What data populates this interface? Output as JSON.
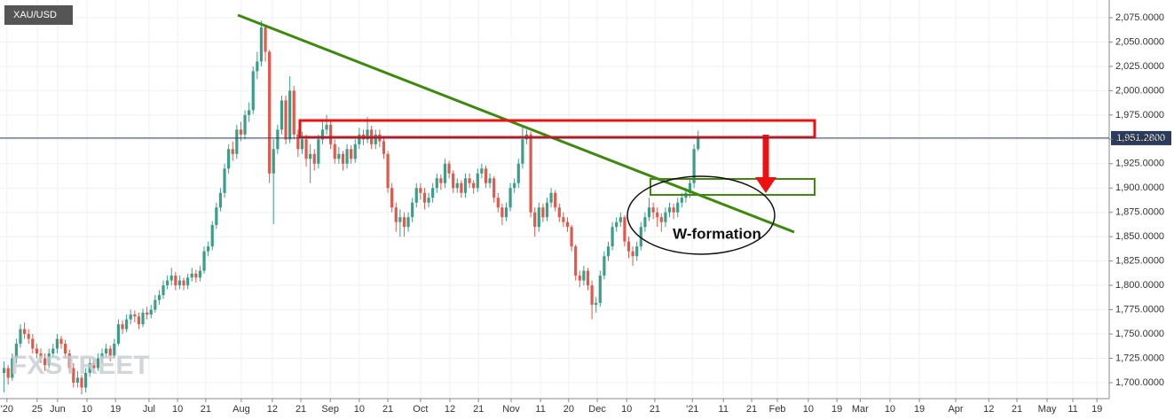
{
  "chart_data": {
    "type": "candlestick",
    "symbol": "XAU/USD",
    "watermark": "FXSTREET",
    "up_color": "#3a9e88",
    "down_color": "#e0594a",
    "grid": true,
    "xlim": [
      -1,
      270.7
    ],
    "ylim": [
      1683.6,
      2093.2
    ],
    "yticks": [
      {
        "value": 1700,
        "label": "1,700.0000"
      },
      {
        "value": 1725,
        "label": "1,725.0000"
      },
      {
        "value": 1750,
        "label": "1,750.0000"
      },
      {
        "value": 1775,
        "label": "1,775.0000"
      },
      {
        "value": 1800,
        "label": "1,800.0000"
      },
      {
        "value": 1825,
        "label": "1,825.0000"
      },
      {
        "value": 1850,
        "label": "1,850.0000"
      },
      {
        "value": 1875,
        "label": "1,875.0000"
      },
      {
        "value": 1900,
        "label": "1,900.0000"
      },
      {
        "value": 1925,
        "label": "1,925.0000"
      },
      {
        "value": 1950,
        "label": "1,950.0000"
      },
      {
        "value": 1975,
        "label": "1,975.0000"
      },
      {
        "value": 2000,
        "label": "2,000.0000"
      },
      {
        "value": 2025,
        "label": "2,025.0000"
      },
      {
        "value": 2050,
        "label": "2,050.0000"
      },
      {
        "value": 2075,
        "label": "2,075.0000"
      }
    ],
    "xticks": [
      {
        "value": 0.7,
        "label": "'20"
      },
      {
        "value": 8.1,
        "label": "25"
      },
      {
        "value": 13.1,
        "label": "Jun"
      },
      {
        "value": 20.3,
        "label": "10"
      },
      {
        "value": 27.3,
        "label": "19"
      },
      {
        "value": 35.5,
        "label": "Jul"
      },
      {
        "value": 42.5,
        "label": "10"
      },
      {
        "value": 49.4,
        "label": "21"
      },
      {
        "value": 58.1,
        "label": "Aug"
      },
      {
        "value": 65.7,
        "label": "12"
      },
      {
        "value": 72.7,
        "label": "21"
      },
      {
        "value": 79.9,
        "label": "Sep"
      },
      {
        "value": 87,
        "label": "10"
      },
      {
        "value": 94,
        "label": "21"
      },
      {
        "value": 102,
        "label": "Oct"
      },
      {
        "value": 109.2,
        "label": "12"
      },
      {
        "value": 116.2,
        "label": "21"
      },
      {
        "value": 124.2,
        "label": "Nov"
      },
      {
        "value": 131.4,
        "label": "11"
      },
      {
        "value": 138.3,
        "label": "20"
      },
      {
        "value": 145.3,
        "label": "Dec"
      },
      {
        "value": 152.5,
        "label": "10"
      },
      {
        "value": 159.4,
        "label": "21"
      },
      {
        "value": 168.6,
        "label": "'21"
      },
      {
        "value": 176.2,
        "label": "11"
      },
      {
        "value": 183.1,
        "label": "21"
      },
      {
        "value": 189.4,
        "label": "Feb"
      },
      {
        "value": 197,
        "label": "10"
      },
      {
        "value": 204,
        "label": "19"
      },
      {
        "value": 209.7,
        "label": "Mar"
      },
      {
        "value": 217,
        "label": "10"
      },
      {
        "value": 224.2,
        "label": "19"
      },
      {
        "value": 233.1,
        "label": "Apr"
      },
      {
        "value": 241.2,
        "label": "12"
      },
      {
        "value": 248.1,
        "label": "21"
      },
      {
        "value": 255.5,
        "label": "May"
      },
      {
        "value": 261.8,
        "label": "11"
      },
      {
        "value": 267.7,
        "label": "19"
      }
    ],
    "last_price": {
      "value": 1951.28,
      "label": "1,951.2800"
    },
    "annotation": "W-formation",
    "ohlc": [
      [
        1710,
        1722,
        1690,
        1715
      ],
      [
        1715,
        1718,
        1698,
        1705
      ],
      [
        1705,
        1730,
        1702,
        1725
      ],
      [
        1725,
        1745,
        1720,
        1740
      ],
      [
        1740,
        1760,
        1736,
        1755
      ],
      [
        1755,
        1762,
        1745,
        1750
      ],
      [
        1750,
        1755,
        1740,
        1745
      ],
      [
        1745,
        1750,
        1730,
        1735
      ],
      [
        1735,
        1740,
        1725,
        1730
      ],
      [
        1730,
        1735,
        1720,
        1725
      ],
      [
        1725,
        1730,
        1712,
        1718
      ],
      [
        1718,
        1735,
        1715,
        1730
      ],
      [
        1730,
        1740,
        1726,
        1735
      ],
      [
        1735,
        1750,
        1730,
        1745
      ],
      [
        1745,
        1748,
        1735,
        1740
      ],
      [
        1740,
        1744,
        1725,
        1730
      ],
      [
        1730,
        1734,
        1710,
        1715
      ],
      [
        1715,
        1720,
        1695,
        1700
      ],
      [
        1700,
        1712,
        1695,
        1705
      ],
      [
        1705,
        1708,
        1688,
        1695
      ],
      [
        1695,
        1715,
        1690,
        1710
      ],
      [
        1710,
        1725,
        1706,
        1720
      ],
      [
        1720,
        1724,
        1710,
        1715
      ],
      [
        1715,
        1730,
        1712,
        1725
      ],
      [
        1725,
        1735,
        1720,
        1730
      ],
      [
        1730,
        1740,
        1726,
        1735
      ],
      [
        1735,
        1738,
        1722,
        1728
      ],
      [
        1728,
        1745,
        1725,
        1740
      ],
      [
        1740,
        1765,
        1738,
        1760
      ],
      [
        1760,
        1764,
        1750,
        1755
      ],
      [
        1755,
        1770,
        1752,
        1765
      ],
      [
        1765,
        1775,
        1760,
        1770
      ],
      [
        1770,
        1774,
        1762,
        1768
      ],
      [
        1768,
        1772,
        1755,
        1760
      ],
      [
        1760,
        1776,
        1757,
        1772
      ],
      [
        1772,
        1778,
        1765,
        1770
      ],
      [
        1770,
        1780,
        1766,
        1775
      ],
      [
        1775,
        1790,
        1772,
        1785
      ],
      [
        1785,
        1795,
        1780,
        1790
      ],
      [
        1790,
        1805,
        1786,
        1800
      ],
      [
        1800,
        1810,
        1796,
        1805
      ],
      [
        1805,
        1818,
        1800,
        1810
      ],
      [
        1810,
        1814,
        1795,
        1800
      ],
      [
        1800,
        1810,
        1796,
        1805
      ],
      [
        1805,
        1808,
        1795,
        1800
      ],
      [
        1800,
        1812,
        1796,
        1808
      ],
      [
        1808,
        1818,
        1804,
        1812
      ],
      [
        1812,
        1816,
        1803,
        1808
      ],
      [
        1808,
        1820,
        1804,
        1815
      ],
      [
        1815,
        1840,
        1812,
        1835
      ],
      [
        1835,
        1845,
        1830,
        1840
      ],
      [
        1840,
        1866,
        1836,
        1862
      ],
      [
        1862,
        1885,
        1858,
        1880
      ],
      [
        1880,
        1900,
        1876,
        1895
      ],
      [
        1895,
        1925,
        1890,
        1920
      ],
      [
        1920,
        1945,
        1915,
        1940
      ],
      [
        1940,
        1948,
        1928,
        1935
      ],
      [
        1935,
        1965,
        1930,
        1960
      ],
      [
        1960,
        1968,
        1948,
        1955
      ],
      [
        1955,
        1980,
        1950,
        1975
      ],
      [
        1975,
        1988,
        1968,
        1980
      ],
      [
        1980,
        2025,
        1976,
        2020
      ],
      [
        2020,
        2040,
        2012,
        2030
      ],
      [
        2030,
        2072,
        2025,
        2065
      ],
      [
        2065,
        2068,
        2030,
        2040
      ],
      [
        2040,
        2042,
        1905,
        1915
      ],
      [
        1915,
        1950,
        1863,
        1940
      ],
      [
        1940,
        1965,
        1935,
        1960
      ],
      [
        1960,
        1995,
        1955,
        1990
      ],
      [
        1990,
        1995,
        1945,
        1950
      ],
      [
        1950,
        2015,
        1946,
        2000
      ],
      [
        2000,
        2005,
        1950,
        1955
      ],
      [
        1955,
        1960,
        1932,
        1940
      ],
      [
        1940,
        1958,
        1935,
        1950
      ],
      [
        1950,
        1955,
        1922,
        1930
      ],
      [
        1930,
        1945,
        1905,
        1935
      ],
      [
        1935,
        1940,
        1918,
        1925
      ],
      [
        1925,
        1955,
        1920,
        1950
      ],
      [
        1950,
        1968,
        1945,
        1960
      ],
      [
        1960,
        1975,
        1955,
        1965
      ],
      [
        1965,
        1970,
        1940,
        1945
      ],
      [
        1945,
        1950,
        1925,
        1930
      ],
      [
        1930,
        1942,
        1925,
        1935
      ],
      [
        1935,
        1938,
        1918,
        1925
      ],
      [
        1925,
        1945,
        1920,
        1940
      ],
      [
        1940,
        1944,
        1925,
        1930
      ],
      [
        1930,
        1950,
        1926,
        1945
      ],
      [
        1945,
        1962,
        1940,
        1955
      ],
      [
        1955,
        1960,
        1944,
        1950
      ],
      [
        1950,
        1973,
        1946,
        1960
      ],
      [
        1960,
        1964,
        1940,
        1945
      ],
      [
        1945,
        1960,
        1940,
        1955
      ],
      [
        1955,
        1960,
        1942,
        1948
      ],
      [
        1948,
        1952,
        1930,
        1935
      ],
      [
        1935,
        1938,
        1895,
        1900
      ],
      [
        1900,
        1905,
        1875,
        1880
      ],
      [
        1880,
        1885,
        1855,
        1865
      ],
      [
        1865,
        1878,
        1850,
        1870
      ],
      [
        1870,
        1875,
        1850,
        1860
      ],
      [
        1860,
        1875,
        1855,
        1870
      ],
      [
        1870,
        1890,
        1865,
        1885
      ],
      [
        1885,
        1905,
        1880,
        1900
      ],
      [
        1900,
        1905,
        1888,
        1895
      ],
      [
        1895,
        1900,
        1878,
        1885
      ],
      [
        1885,
        1895,
        1880,
        1890
      ],
      [
        1890,
        1905,
        1885,
        1900
      ],
      [
        1900,
        1915,
        1895,
        1910
      ],
      [
        1910,
        1914,
        1898,
        1905
      ],
      [
        1905,
        1930,
        1900,
        1925
      ],
      [
        1925,
        1928,
        1910,
        1915
      ],
      [
        1915,
        1918,
        1895,
        1900
      ],
      [
        1900,
        1910,
        1895,
        1905
      ],
      [
        1905,
        1908,
        1890,
        1895
      ],
      [
        1895,
        1915,
        1890,
        1910
      ],
      [
        1910,
        1915,
        1900,
        1905
      ],
      [
        1905,
        1908,
        1894,
        1900
      ],
      [
        1900,
        1920,
        1896,
        1915
      ],
      [
        1915,
        1925,
        1910,
        1920
      ],
      [
        1920,
        1923,
        1900,
        1905
      ],
      [
        1905,
        1915,
        1900,
        1910
      ],
      [
        1910,
        1912,
        1885,
        1890
      ],
      [
        1890,
        1895,
        1875,
        1880
      ],
      [
        1880,
        1884,
        1862,
        1870
      ],
      [
        1870,
        1885,
        1866,
        1880
      ],
      [
        1880,
        1905,
        1876,
        1900
      ],
      [
        1900,
        1910,
        1895,
        1905
      ],
      [
        1905,
        1930,
        1900,
        1925
      ],
      [
        1925,
        1965,
        1920,
        1950
      ],
      [
        1950,
        1960,
        1945,
        1955
      ],
      [
        1955,
        1958,
        1870,
        1875
      ],
      [
        1875,
        1880,
        1850,
        1860
      ],
      [
        1860,
        1885,
        1855,
        1880
      ],
      [
        1880,
        1884,
        1865,
        1870
      ],
      [
        1870,
        1890,
        1866,
        1885
      ],
      [
        1885,
        1900,
        1880,
        1895
      ],
      [
        1895,
        1898,
        1876,
        1880
      ],
      [
        1880,
        1884,
        1865,
        1870
      ],
      [
        1870,
        1875,
        1860,
        1865
      ],
      [
        1865,
        1870,
        1855,
        1860
      ],
      [
        1860,
        1862,
        1835,
        1840
      ],
      [
        1840,
        1842,
        1805,
        1810
      ],
      [
        1810,
        1815,
        1798,
        1805
      ],
      [
        1805,
        1820,
        1800,
        1815
      ],
      [
        1815,
        1818,
        1795,
        1800
      ],
      [
        1800,
        1805,
        1765,
        1780
      ],
      [
        1780,
        1788,
        1772,
        1782
      ],
      [
        1782,
        1815,
        1778,
        1810
      ],
      [
        1810,
        1835,
        1806,
        1830
      ],
      [
        1830,
        1845,
        1825,
        1840
      ],
      [
        1840,
        1865,
        1836,
        1860
      ],
      [
        1860,
        1870,
        1855,
        1865
      ],
      [
        1865,
        1875,
        1860,
        1870
      ],
      [
        1870,
        1872,
        1840,
        1845
      ],
      [
        1845,
        1850,
        1828,
        1835
      ],
      [
        1835,
        1840,
        1820,
        1830
      ],
      [
        1830,
        1845,
        1825,
        1840
      ],
      [
        1840,
        1865,
        1836,
        1860
      ],
      [
        1860,
        1875,
        1855,
        1870
      ],
      [
        1870,
        1890,
        1866,
        1880
      ],
      [
        1880,
        1885,
        1868,
        1875
      ],
      [
        1875,
        1880,
        1860,
        1870
      ],
      [
        1870,
        1874,
        1855,
        1865
      ],
      [
        1865,
        1880,
        1860,
        1875
      ],
      [
        1875,
        1885,
        1870,
        1880
      ],
      [
        1880,
        1884,
        1868,
        1875
      ],
      [
        1875,
        1890,
        1870,
        1885
      ],
      [
        1885,
        1895,
        1880,
        1890
      ],
      [
        1890,
        1900,
        1885,
        1895
      ],
      [
        1895,
        1910,
        1890,
        1905
      ],
      [
        1905,
        1945,
        1900,
        1940
      ],
      [
        1940,
        1959,
        1938,
        1951.28
      ]
    ]
  }
}
